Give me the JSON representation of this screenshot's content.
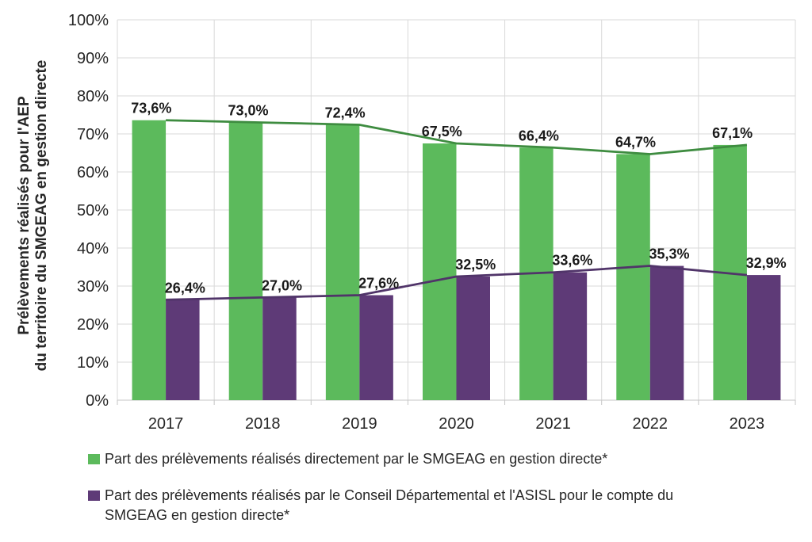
{
  "chart_data": {
    "type": "bar",
    "overlay_line": true,
    "title": "",
    "categories": [
      "2017",
      "2018",
      "2019",
      "2020",
      "2021",
      "2022",
      "2023"
    ],
    "series": [
      {
        "key": "smgeag-direct",
        "name": "Part des prélèvements réalisés directement par le SMGEAG en gestion directe*",
        "values": [
          73.6,
          73.0,
          72.4,
          67.5,
          66.4,
          64.7,
          67.1
        ],
        "bar_color": "#5cba5c",
        "line_color": "#3e8c40"
      },
      {
        "key": "cd-asisl",
        "name": "Part des prélèvements réalisés par le Conseil Départemental et l'ASISL pour le compte du SMGEAG en gestion directe*",
        "values": [
          26.4,
          27.0,
          27.6,
          32.5,
          33.6,
          35.3,
          32.9
        ],
        "bar_color": "#5e3a77",
        "line_color": "#503469"
      }
    ],
    "xlabel": "",
    "ylabel_lines": [
      "Prélèvements réalisés pour l'AEP",
      "du territoire du SMGEAG en gestion directe"
    ],
    "ylim": [
      0,
      100
    ],
    "ytick_step": 10,
    "ytick_suffix": "%",
    "value_label_format": "one_decimal_comma_percent",
    "grid": true,
    "legend_position": "bottom"
  },
  "legend": {
    "items": [
      {
        "color": "#5cba5c",
        "lines": [
          "Part des prélèvements réalisés directement par le SMGEAG en gestion directe*"
        ]
      },
      {
        "color": "#5e3a77",
        "lines": [
          "Part des prélèvements réalisés par le Conseil Départemental et l'ASISL pour le compte du",
          "SMGEAG en gestion directe*"
        ]
      }
    ]
  },
  "colors": {
    "gridline": "#d9d9d9",
    "axis": "#c6c6c6",
    "tick_text": "#262626",
    "data_label_text": "#1a1a1a"
  }
}
